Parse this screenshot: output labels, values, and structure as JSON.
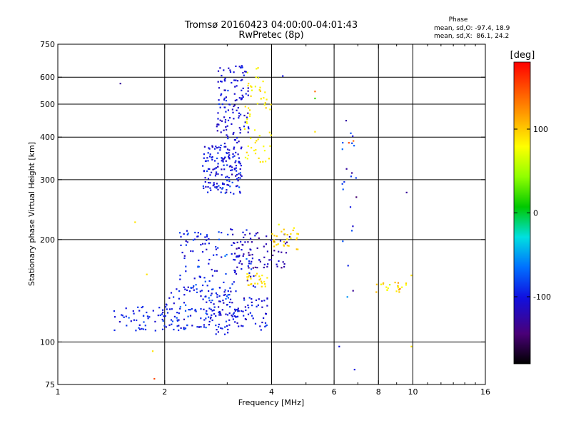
{
  "header": {
    "title_line1": "Tromsø 20160423 04:00:00-04:01:43",
    "title_line2": "RwPretec (8p)",
    "phase_heading": "Phase",
    "phase_line_o": "mean, sd,O: -97.4, 18.9",
    "phase_line_x": "mean, sd,X:  86.1, 24.2"
  },
  "chart_data": {
    "type": "scatter",
    "xlabel": "Frequency [MHz]",
    "ylabel": "Stationary phase Virtual Height [km]",
    "x_scale": "log",
    "y_scale": "log",
    "xlim": [
      1,
      16
    ],
    "ylim": [
      75,
      750
    ],
    "x_ticks": [
      1,
      2,
      4,
      6,
      8,
      10,
      16
    ],
    "x_tick_labels": [
      "1",
      "2",
      "4",
      "6",
      "8",
      "10",
      "16"
    ],
    "y_ticks": [
      75,
      100,
      200,
      300,
      400,
      500,
      600,
      750
    ],
    "y_tick_labels": [
      "75",
      "100",
      "200",
      "300",
      "400",
      "500",
      "600",
      "750"
    ],
    "x_gridlines": [
      2,
      4,
      6,
      8,
      10
    ],
    "y_gridlines": [
      100,
      200,
      300,
      400,
      500,
      600
    ],
    "grid": true,
    "colorbar": {
      "label": "[deg]",
      "range": [
        -180,
        180
      ],
      "ticks": [
        100,
        0,
        -100
      ],
      "tick_labels": [
        "100",
        "0",
        "-100"
      ]
    },
    "clusters": [
      {
        "x0": 1.43,
        "x1": 2.3,
        "h0": 108,
        "h1": 128,
        "n": 70,
        "phase": -95,
        "sd": 15
      },
      {
        "x0": 2.0,
        "x1": 3.2,
        "h0": 110,
        "h1": 145,
        "n": 110,
        "phase": -92,
        "sd": 18
      },
      {
        "x0": 2.6,
        "x1": 3.9,
        "h0": 105,
        "h1": 135,
        "n": 90,
        "phase": -100,
        "sd": 16
      },
      {
        "x0": 2.2,
        "x1": 3.6,
        "h0": 140,
        "h1": 215,
        "n": 120,
        "phase": -95,
        "sd": 18
      },
      {
        "x0": 3.1,
        "x1": 4.5,
        "h0": 165,
        "h1": 210,
        "n": 70,
        "phase": -120,
        "sd": 14
      },
      {
        "x0": 3.4,
        "x1": 3.9,
        "h0": 145,
        "h1": 160,
        "n": 25,
        "phase": 110,
        "sd": 10
      },
      {
        "x0": 4.0,
        "x1": 4.8,
        "h0": 185,
        "h1": 225,
        "n": 30,
        "phase": 115,
        "sd": 12
      },
      {
        "x0": 2.55,
        "x1": 3.3,
        "h0": 270,
        "h1": 380,
        "n": 160,
        "phase": -100,
        "sd": 16
      },
      {
        "x0": 2.8,
        "x1": 3.45,
        "h0": 380,
        "h1": 650,
        "n": 120,
        "phase": -105,
        "sd": 15
      },
      {
        "x0": 3.35,
        "x1": 4.0,
        "h0": 335,
        "h1": 640,
        "n": 60,
        "phase": 105,
        "sd": 10
      },
      {
        "x0": 6.3,
        "x1": 7.0,
        "h0": 130,
        "h1": 580,
        "n": 22,
        "phase": -100,
        "sd": 40
      },
      {
        "x0": 7.8,
        "x1": 9.6,
        "h0": 140,
        "h1": 150,
        "n": 22,
        "phase": 110,
        "sd": 40
      }
    ],
    "outliers": [
      {
        "x": 1.5,
        "y": 575,
        "phase": -130
      },
      {
        "x": 1.65,
        "y": 225,
        "phase": 110
      },
      {
        "x": 1.85,
        "y": 94,
        "phase": 110
      },
      {
        "x": 1.87,
        "y": 78,
        "phase": 160
      },
      {
        "x": 1.78,
        "y": 158,
        "phase": 110
      },
      {
        "x": 5.3,
        "y": 545,
        "phase": 150
      },
      {
        "x": 5.3,
        "y": 520,
        "phase": 20
      },
      {
        "x": 5.3,
        "y": 415,
        "phase": 110
      },
      {
        "x": 6.2,
        "y": 97,
        "phase": -100
      },
      {
        "x": 6.85,
        "y": 83,
        "phase": -100
      },
      {
        "x": 9.6,
        "y": 275,
        "phase": -130
      },
      {
        "x": 9.9,
        "y": 157,
        "phase": 110
      },
      {
        "x": 9.9,
        "y": 97,
        "phase": 110
      },
      {
        "x": 4.3,
        "y": 605,
        "phase": -100
      },
      {
        "x": 6.8,
        "y": 390,
        "phase": 150
      },
      {
        "x": 6.6,
        "y": 385,
        "phase": 160
      }
    ]
  }
}
